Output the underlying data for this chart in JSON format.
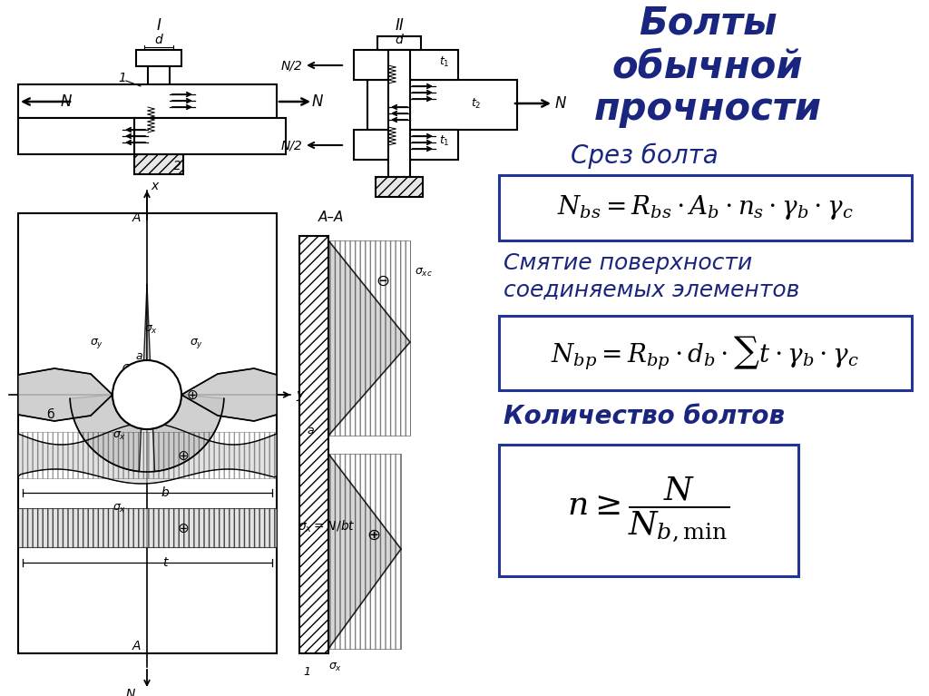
{
  "bg_color": "#ffffff",
  "dark_blue": "#1a2580",
  "black": "#000000",
  "title_line1": "Болты",
  "title_line2": "обычной",
  "title_line3": "прочности",
  "subtitle1": "Срез болта",
  "subtitle2_line1": "Смятие поверхности",
  "subtitle2_line2": "соединяемых элементов",
  "subtitle3": "Количество болтов"
}
